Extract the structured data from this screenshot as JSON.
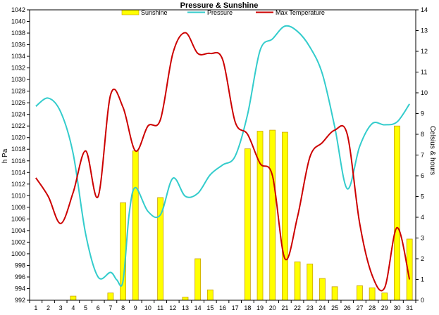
{
  "chart_data": {
    "type": "bar+line",
    "title": "Pressure & Sunshine",
    "x": [
      "1",
      "2",
      "3",
      "4",
      "5",
      "6",
      "7",
      "8",
      "9",
      "10",
      "11",
      "12",
      "13",
      "14",
      "15",
      "16",
      "17",
      "18",
      "19",
      "20",
      "21",
      "22",
      "23",
      "24",
      "25",
      "26",
      "27",
      "28",
      "29",
      "30",
      "31"
    ],
    "y_left": {
      "label": "h Pa",
      "ylim": [
        992,
        1042
      ],
      "ticks": [
        "992",
        "994",
        "996",
        "998",
        "1000",
        "1002",
        "1004",
        "1006",
        "1008",
        "1010",
        "1012",
        "1014",
        "1016",
        "1018",
        "1020",
        "1022",
        "1024",
        "1026",
        "1028",
        "1030",
        "1032",
        "1034",
        "1036",
        "1038",
        "1040",
        "1042"
      ]
    },
    "y_right": {
      "label": "Celsius & hours",
      "ylim": [
        0,
        14
      ],
      "ticks": [
        "0",
        "1",
        "2",
        "3",
        "4",
        "5",
        "6",
        "7",
        "8",
        "9",
        "10",
        "11",
        "12",
        "13",
        "14"
      ]
    },
    "series": [
      {
        "name": "Sunshine",
        "kind": "bar",
        "axis": "right",
        "color": "#FFFF00",
        "edge_color": "#C8A000",
        "values": [
          0,
          0,
          0,
          0.2,
          0,
          0,
          0.35,
          4.7,
          7.2,
          0,
          4.95,
          0,
          0.15,
          2.0,
          0.5,
          0,
          0,
          7.3,
          8.15,
          8.2,
          8.1,
          1.85,
          1.75,
          1.05,
          0.65,
          0,
          0.7,
          0.6,
          0.35,
          8.4,
          2.95
        ]
      },
      {
        "name": "Pressure",
        "kind": "line",
        "axis": "left",
        "color": "#33CCCC",
        "points": [
          [
            1,
            1025.4
          ],
          [
            2,
            1026.8
          ],
          [
            3,
            1024.4
          ],
          [
            4,
            1017.2
          ],
          [
            5,
            1003.4
          ],
          [
            6,
            996.0
          ],
          [
            7,
            996.8
          ],
          [
            7.5,
            995.5
          ],
          [
            8,
            995.3
          ],
          [
            8.5,
            1007.0
          ],
          [
            9,
            1011.4
          ],
          [
            10,
            1007.3
          ],
          [
            11,
            1006.7
          ],
          [
            12,
            1013.0
          ],
          [
            13,
            1009.9
          ],
          [
            14,
            1010.4
          ],
          [
            15,
            1013.6
          ],
          [
            16,
            1015.3
          ],
          [
            17,
            1016.8
          ],
          [
            18,
            1024.0
          ],
          [
            19,
            1035.0
          ],
          [
            20,
            1037.0
          ],
          [
            21,
            1039.2
          ],
          [
            22,
            1038.3
          ],
          [
            23,
            1035.6
          ],
          [
            24,
            1031.0
          ],
          [
            25,
            1021.8
          ],
          [
            26,
            1011.2
          ],
          [
            27,
            1018.5
          ],
          [
            28,
            1022.4
          ],
          [
            29,
            1022.2
          ],
          [
            30,
            1022.7
          ],
          [
            31,
            1025.8
          ]
        ]
      },
      {
        "name": "Max Temperature",
        "kind": "line",
        "axis": "right",
        "color": "#CC0000",
        "points": [
          [
            1,
            5.9
          ],
          [
            2,
            5.0
          ],
          [
            3,
            3.7
          ],
          [
            4,
            5.2
          ],
          [
            5,
            7.2
          ],
          [
            6,
            5.0
          ],
          [
            7,
            9.9
          ],
          [
            8,
            9.3
          ],
          [
            9,
            7.2
          ],
          [
            10,
            8.4
          ],
          [
            11,
            8.7
          ],
          [
            12,
            11.9
          ],
          [
            13,
            12.9
          ],
          [
            14,
            11.9
          ],
          [
            15,
            11.9
          ],
          [
            16,
            11.6
          ],
          [
            17,
            8.6
          ],
          [
            18,
            8.0
          ],
          [
            19,
            6.6
          ],
          [
            20,
            6.0
          ],
          [
            21,
            2.0
          ],
          [
            22,
            4.0
          ],
          [
            23,
            6.9
          ],
          [
            24,
            7.6
          ],
          [
            25,
            8.2
          ],
          [
            26,
            8.0
          ],
          [
            27,
            3.7
          ],
          [
            28,
            1.2
          ],
          [
            29,
            0.6
          ],
          [
            30,
            3.5
          ],
          [
            31,
            1.0
          ]
        ]
      }
    ],
    "legend_position": "top",
    "grid": false
  }
}
